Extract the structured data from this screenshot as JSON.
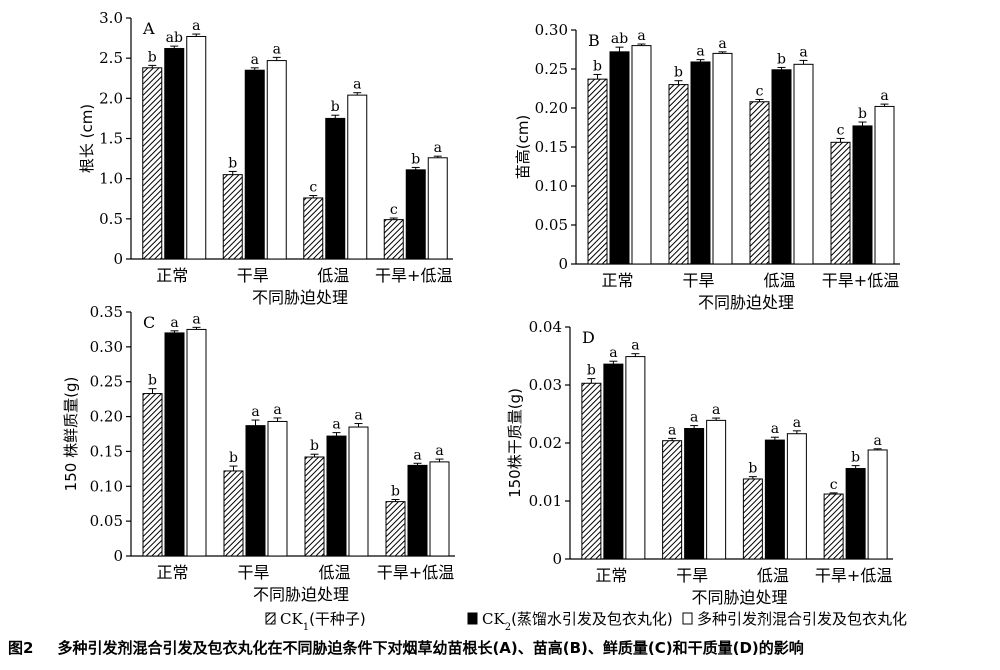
{
  "legend": {
    "items": [
      {
        "key": "ck1",
        "pattern": "hatch",
        "label_main": "CK",
        "label_sub": "1",
        "label_rest": "(干种子)"
      },
      {
        "key": "ck2",
        "pattern": "solid",
        "label_main": "CK",
        "label_sub": "2",
        "label_rest": "(蒸馏水引发及包衣丸化)"
      },
      {
        "key": "mix",
        "pattern": "white",
        "label_main": "多种引发剂混合引发及包衣丸化",
        "label_sub": "",
        "label_rest": ""
      }
    ]
  },
  "caption": {
    "fig_no": "图2",
    "text": "多种引发剂混合引发及包衣丸化在不同胁迫条件下对烟草幼苗根长(A)、苗高(B)、鲜质量(C)和干质量(D)的影响"
  },
  "chart_data": [
    {
      "panel": "A",
      "type": "bar",
      "categories": [
        "正常",
        "干旱",
        "低温",
        "干旱+低温"
      ],
      "xlabel": "不同胁迫处理",
      "ylabel": "根长 (cm)",
      "ylim": [
        0,
        3.0
      ],
      "yticks": [
        "0",
        "0.5",
        "1.0",
        "1.5",
        "2.0",
        "2.5",
        "3.0"
      ],
      "series": [
        {
          "key": "ck1",
          "values": [
            2.38,
            1.05,
            0.76,
            0.49
          ],
          "errors": [
            0.03,
            0.04,
            0.03,
            0.02
          ],
          "letters": [
            "b",
            "b",
            "c",
            "c"
          ]
        },
        {
          "key": "ck2",
          "values": [
            2.62,
            2.35,
            1.75,
            1.11
          ],
          "errors": [
            0.03,
            0.03,
            0.04,
            0.03
          ],
          "letters": [
            "ab",
            "a",
            "b",
            "b"
          ]
        },
        {
          "key": "mix",
          "values": [
            2.77,
            2.47,
            2.04,
            1.26
          ],
          "errors": [
            0.03,
            0.04,
            0.03,
            0.02
          ],
          "letters": [
            "a",
            "a",
            "a",
            "a"
          ]
        }
      ]
    },
    {
      "panel": "B",
      "type": "bar",
      "categories": [
        "正常",
        "干旱",
        "低温",
        "干旱+低温"
      ],
      "xlabel": "不同胁迫处理",
      "ylabel": "苗高(cm)",
      "ylim": [
        0,
        0.3
      ],
      "yticks": [
        "0",
        "0.05",
        "0.10",
        "0.15",
        "0.20",
        "0.25",
        "0.30"
      ],
      "series": [
        {
          "key": "ck1",
          "values": [
            0.237,
            0.23,
            0.208,
            0.156
          ],
          "errors": [
            0.006,
            0.005,
            0.003,
            0.005
          ],
          "letters": [
            "b",
            "b",
            "c",
            "c"
          ]
        },
        {
          "key": "ck2",
          "values": [
            0.272,
            0.259,
            0.249,
            0.177
          ],
          "errors": [
            0.006,
            0.003,
            0.003,
            0.005
          ],
          "letters": [
            "ab",
            "a",
            "b",
            "b"
          ]
        },
        {
          "key": "mix",
          "values": [
            0.28,
            0.27,
            0.256,
            0.202
          ],
          "errors": [
            0.002,
            0.002,
            0.005,
            0.003
          ],
          "letters": [
            "a",
            "a",
            "a",
            "a"
          ]
        }
      ]
    },
    {
      "panel": "C",
      "type": "bar",
      "categories": [
        "正常",
        "干旱",
        "低温",
        "干旱+低温"
      ],
      "xlabel": "不同胁迫处理",
      "ylabel": "150 株鲜质量(g)",
      "ylim": [
        0,
        0.35
      ],
      "yticks": [
        "0",
        "0.05",
        "0.10",
        "0.15",
        "0.20",
        "0.25",
        "0.30",
        "0.35"
      ],
      "series": [
        {
          "key": "ck1",
          "values": [
            0.233,
            0.122,
            0.142,
            0.078
          ],
          "errors": [
            0.007,
            0.007,
            0.004,
            0.003
          ],
          "letters": [
            "b",
            "b",
            "b",
            "b"
          ]
        },
        {
          "key": "ck2",
          "values": [
            0.32,
            0.187,
            0.172,
            0.13
          ],
          "errors": [
            0.003,
            0.008,
            0.005,
            0.003
          ],
          "letters": [
            "a",
            "a",
            "a",
            "a"
          ]
        },
        {
          "key": "mix",
          "values": [
            0.325,
            0.193,
            0.185,
            0.135
          ],
          "errors": [
            0.003,
            0.005,
            0.005,
            0.004
          ],
          "letters": [
            "a",
            "a",
            "a",
            "a"
          ]
        }
      ]
    },
    {
      "panel": "D",
      "type": "bar",
      "categories": [
        "正常",
        "干旱",
        "低温",
        "干旱+低温"
      ],
      "xlabel": "不同胁迫处理",
      "ylabel": "150株干质量(g)",
      "ylim": [
        0,
        0.04
      ],
      "yticks": [
        "0",
        "0.01",
        "0.02",
        "0.03",
        "0.04"
      ],
      "series": [
        {
          "key": "ck1",
          "values": [
            0.0303,
            0.0204,
            0.0138,
            0.0112
          ],
          "errors": [
            0.0008,
            0.0004,
            0.0004,
            0.0002
          ],
          "letters": [
            "b",
            "a",
            "b",
            "c"
          ]
        },
        {
          "key": "ck2",
          "values": [
            0.0336,
            0.0225,
            0.0205,
            0.0156
          ],
          "errors": [
            0.0005,
            0.0005,
            0.0005,
            0.0005
          ],
          "letters": [
            "a",
            "a",
            "a",
            "b"
          ]
        },
        {
          "key": "mix",
          "values": [
            0.0349,
            0.0239,
            0.0216,
            0.0188
          ],
          "errors": [
            0.0005,
            0.0004,
            0.0005,
            0.0002
          ],
          "letters": [
            "a",
            "a",
            "a",
            "a"
          ]
        }
      ]
    }
  ]
}
